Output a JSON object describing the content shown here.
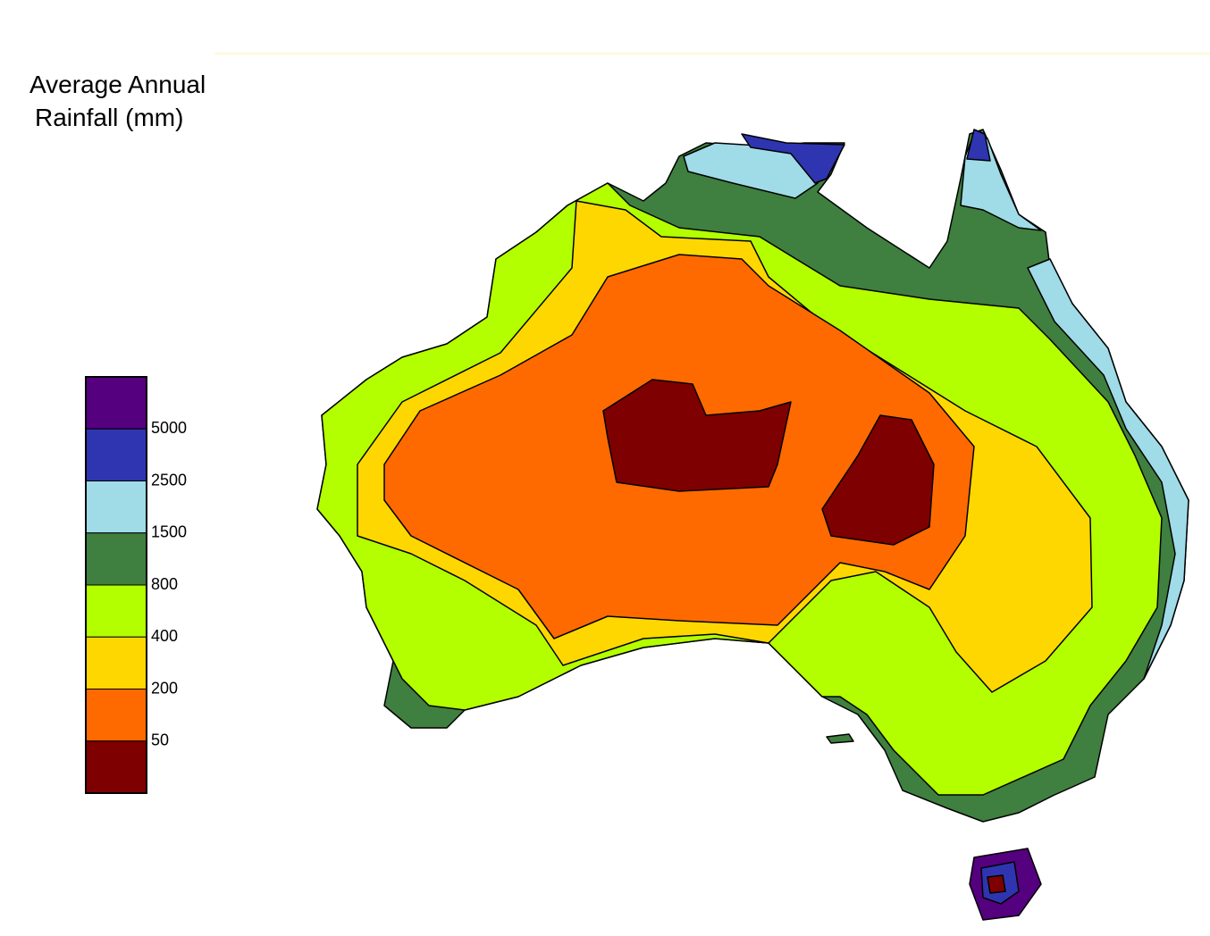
{
  "title": {
    "line1": "Average Annual",
    "line2": "Rainfall (mm)"
  },
  "legend": {
    "colors": [
      "#55007f",
      "#2f35b0",
      "#a0dbe8",
      "#3f7f3f",
      "#b3ff00",
      "#ffd700",
      "#ff6a00",
      "#7f0000"
    ],
    "labels": [
      "5000",
      "2500",
      "1500",
      "800",
      "400",
      "200",
      "50"
    ]
  }
}
